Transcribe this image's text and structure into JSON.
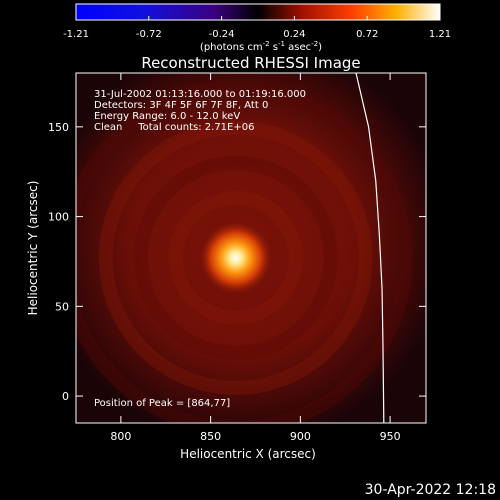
{
  "chart_data": {
    "type": "heatmap",
    "title": "Reconstructed RHESSI Image",
    "xlabel": "Heliocentric X (arcsec)",
    "ylabel": "Heliocentric Y (arcsec)",
    "xlim": [
      775,
      970
    ],
    "ylim": [
      -15,
      180
    ],
    "x_ticks": [
      800,
      850,
      900,
      950
    ],
    "y_ticks": [
      0,
      50,
      100,
      150
    ],
    "colorbar": {
      "min": -1.21,
      "max": 1.21,
      "ticks": [
        "-1.21",
        "-0.72",
        "-0.24",
        "0.24",
        "0.72",
        "1.21"
      ],
      "unit_text": "(photons cm",
      "unit_exp1": "-2",
      "unit_mid": " s",
      "unit_exp2": "-1",
      "unit_mid2": " asec",
      "unit_exp3": "-2",
      "unit_close": ")",
      "colormap": "black-red-orange-yellow-white (IDL color table 3 style), blue for negative"
    },
    "annotation_lines": [
      "31-Jul-2002 01:13:16.000 to 01:19:16.000",
      "Detectors: 3F 4F 5F 6F 7F 8F, Att 0",
      "Energy Range: 6.0 - 12.0 keV",
      "Clean     Total counts: 2.71E+06"
    ],
    "peak_label": "Position of Peak = [864,77]",
    "peak": {
      "x": 864,
      "y": 77,
      "value": 1.21
    },
    "background_level": 0.32,
    "limb_curve_color": "#ffffff",
    "limb_curve": [
      [
        931,
        180
      ],
      [
        938,
        150
      ],
      [
        942,
        120
      ],
      [
        944,
        90
      ],
      [
        945.5,
        60
      ],
      [
        946,
        30
      ],
      [
        946.5,
        -15
      ]
    ]
  },
  "timestamp": "30-Apr-2022 12:18"
}
